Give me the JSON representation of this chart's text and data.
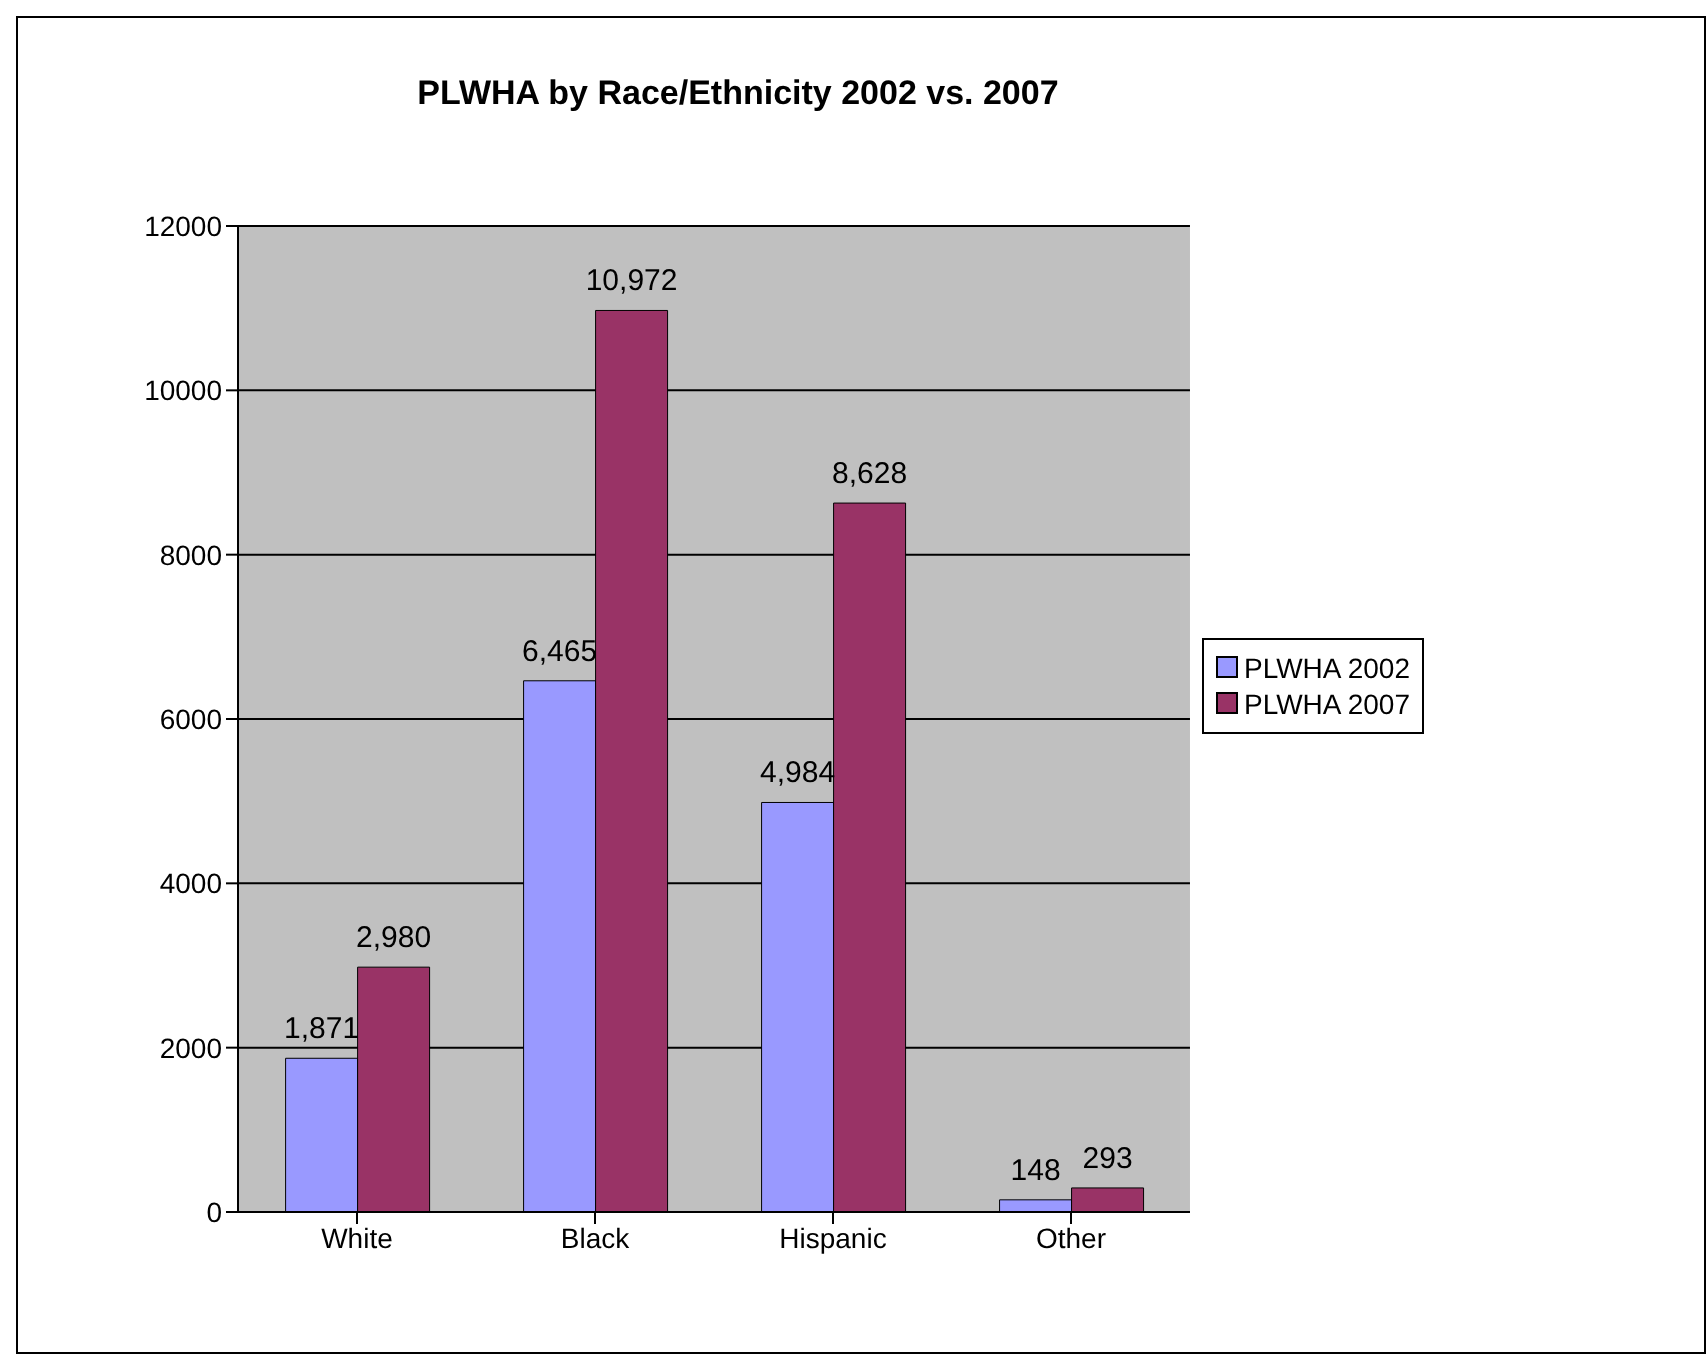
{
  "chart_data": {
    "type": "bar",
    "title": "PLWHA by Race/Ethnicity 2002 vs. 2007",
    "categories": [
      "White",
      "Black",
      "Hispanic",
      "Other"
    ],
    "series": [
      {
        "name": "PLWHA 2002",
        "color": "#9999ff",
        "values": [
          1871,
          6465,
          4984,
          148
        ],
        "value_labels": [
          "1,871",
          "6,465",
          "4,984",
          "148"
        ]
      },
      {
        "name": "PLWHA 2007",
        "color": "#993366",
        "values": [
          2980,
          10972,
          8628,
          293
        ],
        "value_labels": [
          "2,980",
          "10,972",
          "8,628",
          "293"
        ]
      }
    ],
    "ylim": [
      0,
      12000
    ],
    "yticks": [
      0,
      2000,
      4000,
      6000,
      8000,
      10000,
      12000
    ],
    "grid": "y",
    "legend": "right"
  }
}
